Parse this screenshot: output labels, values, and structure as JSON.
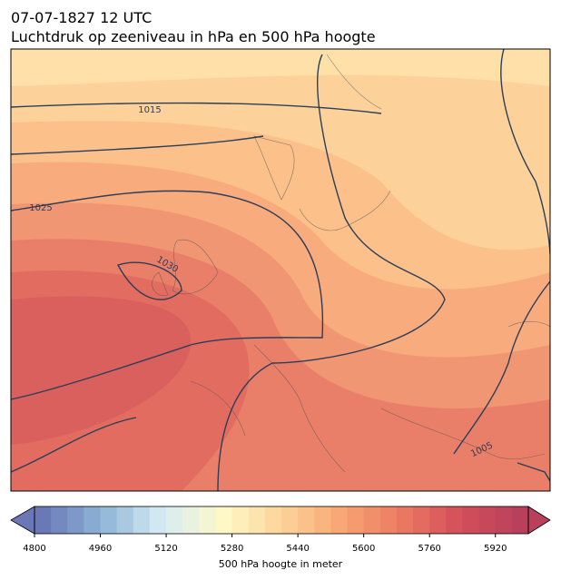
{
  "header": {
    "title": "07-07-1827 12 UTC",
    "subtitle": "Luchtdruk op zeeniveau in hPa en 500 hPa hoogte"
  },
  "map": {
    "isobar_labels": [
      "1015",
      "1025",
      "1030",
      "1005"
    ]
  },
  "colorbar": {
    "label": "500 hPa hoogte in meter",
    "range": [
      4800,
      6000
    ],
    "step": 40,
    "ticks": [
      4800,
      4960,
      5120,
      5280,
      5440,
      5600,
      5760,
      5920
    ],
    "colors": [
      "#6a78b8",
      "#8fb4d6",
      "#d6ecf4",
      "#fef9c8",
      "#fdd49a",
      "#f9a674",
      "#ec7a62",
      "#d44e5a",
      "#b8405a"
    ]
  }
}
